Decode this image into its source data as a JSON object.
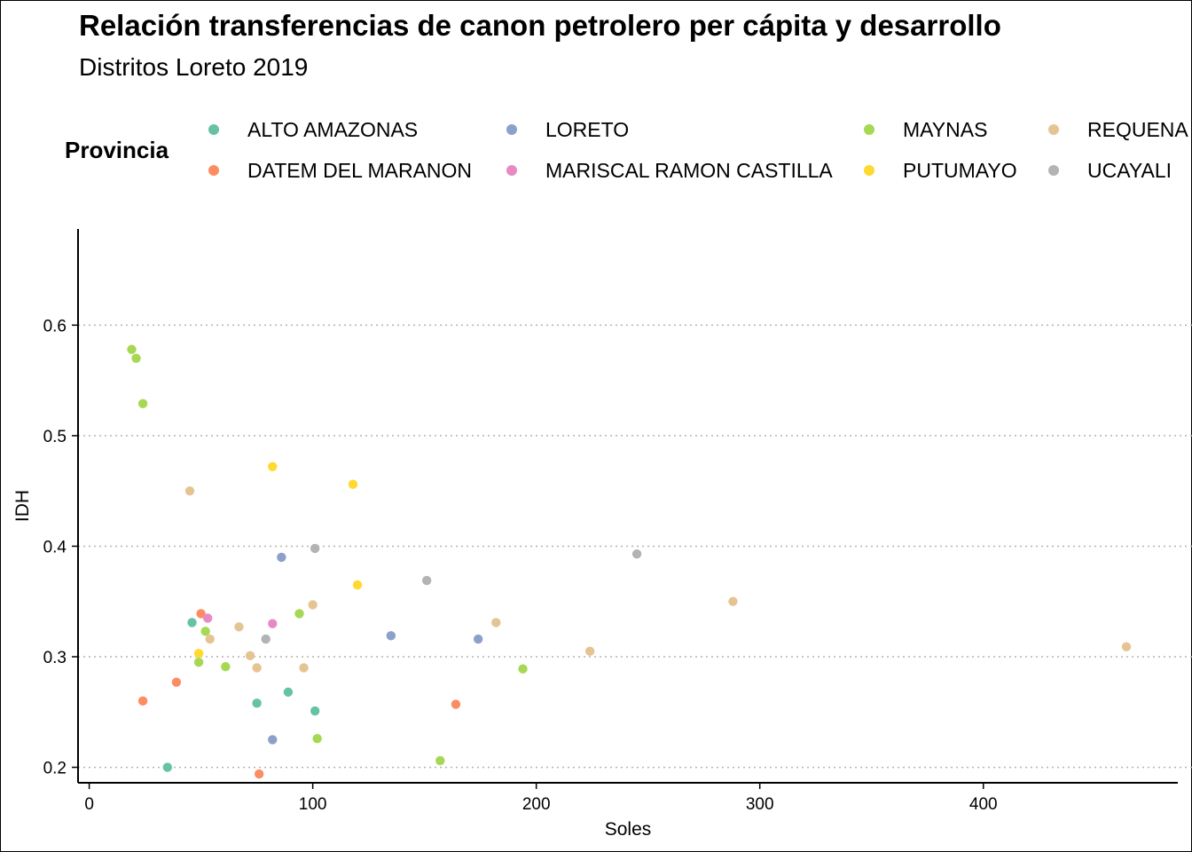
{
  "chart_data": {
    "type": "scatter",
    "title": "Relación transferencias de canon petrolero per cápita y desarrollo",
    "subtitle": "Distritos Loreto 2019",
    "xlabel": "Soles",
    "ylabel": "IDH",
    "xlim": [
      -5,
      487
    ],
    "ylim": [
      0.186,
      0.687
    ],
    "xticks": [
      0,
      100,
      200,
      300,
      400
    ],
    "yticks": [
      0.2,
      0.3,
      0.4,
      0.5,
      0.6
    ],
    "xtick_labels": [
      "0",
      "100",
      "200",
      "300",
      "400"
    ],
    "ytick_labels": [
      "0.2",
      "0.3",
      "0.4",
      "0.5",
      "0.6"
    ],
    "grid": "horizontal-dotted",
    "legend": {
      "title": "Provincia",
      "position": "top",
      "entries": [
        {
          "name": "ALTO AMAZONAS",
          "color": "#66c2a5"
        },
        {
          "name": "DATEM DEL MARANON",
          "color": "#fc8d62"
        },
        {
          "name": "LORETO",
          "color": "#8da0cb"
        },
        {
          "name": "MARISCAL RAMON CASTILLA",
          "color": "#e78ac3"
        },
        {
          "name": "MAYNAS",
          "color": "#a6d854"
        },
        {
          "name": "PUTUMAYO",
          "color": "#ffd92f"
        },
        {
          "name": "REQUENA",
          "color": "#e5c494"
        },
        {
          "name": "UCAYALI",
          "color": "#b3b3b3"
        }
      ]
    },
    "series": [
      {
        "name": "ALTO AMAZONAS",
        "points": [
          [
            35,
            0.2
          ],
          [
            46,
            0.331
          ],
          [
            75,
            0.258
          ],
          [
            89,
            0.268
          ],
          [
            101,
            0.251
          ]
        ]
      },
      {
        "name": "DATEM DEL MARANON",
        "points": [
          [
            24,
            0.26
          ],
          [
            39,
            0.277
          ],
          [
            50,
            0.339
          ],
          [
            76,
            0.194
          ],
          [
            164,
            0.257
          ]
        ]
      },
      {
        "name": "LORETO",
        "points": [
          [
            82,
            0.225
          ],
          [
            86,
            0.39
          ],
          [
            135,
            0.319
          ],
          [
            174,
            0.316
          ]
        ]
      },
      {
        "name": "MARISCAL RAMON CASTILLA",
        "points": [
          [
            53,
            0.335
          ],
          [
            82,
            0.33
          ]
        ]
      },
      {
        "name": "MAYNAS",
        "points": [
          [
            19,
            0.578
          ],
          [
            21,
            0.57
          ],
          [
            24,
            0.529
          ],
          [
            49,
            0.295
          ],
          [
            52,
            0.323
          ],
          [
            61,
            0.291
          ],
          [
            94,
            0.339
          ],
          [
            102,
            0.226
          ],
          [
            157,
            0.206
          ],
          [
            194,
            0.289
          ]
        ]
      },
      {
        "name": "PUTUMAYO",
        "points": [
          [
            49,
            0.303
          ],
          [
            82,
            0.472
          ],
          [
            118,
            0.456
          ],
          [
            120,
            0.365
          ]
        ]
      },
      {
        "name": "REQUENA",
        "points": [
          [
            45,
            0.45
          ],
          [
            54,
            0.316
          ],
          [
            67,
            0.327
          ],
          [
            72,
            0.301
          ],
          [
            75,
            0.29
          ],
          [
            96,
            0.29
          ],
          [
            100,
            0.347
          ],
          [
            182,
            0.331
          ],
          [
            224,
            0.305
          ],
          [
            288,
            0.35
          ],
          [
            464,
            0.309
          ]
        ]
      },
      {
        "name": "UCAYALI",
        "points": [
          [
            79,
            0.316
          ],
          [
            101,
            0.398
          ],
          [
            151,
            0.369
          ],
          [
            245,
            0.393
          ]
        ]
      }
    ]
  }
}
